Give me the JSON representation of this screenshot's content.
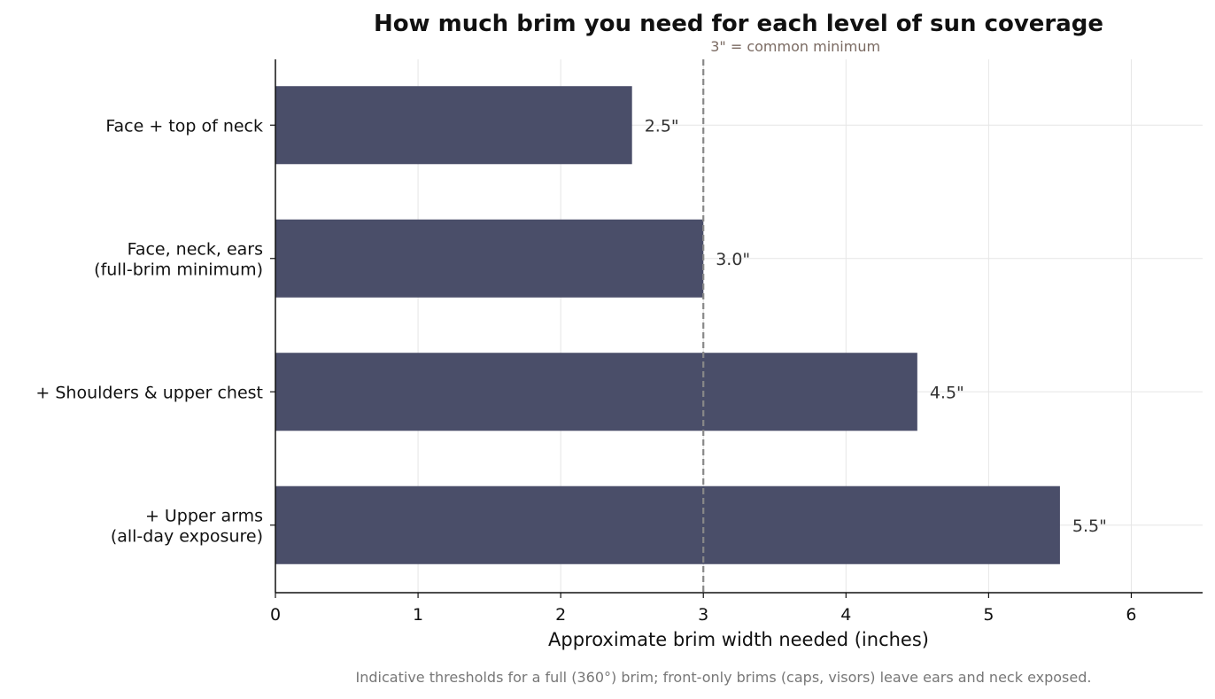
{
  "chart_data": {
    "type": "bar",
    "orientation": "horizontal",
    "title": "How much brim you need for each level of sun coverage",
    "xlabel": "Approximate brim width needed (inches)",
    "categories": [
      [
        "Face + top of neck"
      ],
      [
        "Face, neck, ears",
        "(full-brim minimum)"
      ],
      [
        "+ Shoulders & upper chest"
      ],
      [
        "+ Upper arms",
        "(all-day exposure)"
      ]
    ],
    "values": [
      2.5,
      3.0,
      4.5,
      5.5
    ],
    "data_labels": [
      "2.5\"",
      "3.0\"",
      "4.5\"",
      "5.5\""
    ],
    "xlim": [
      0,
      6.5
    ],
    "xticks": [
      0,
      1,
      2,
      3,
      4,
      5,
      6
    ],
    "reference_line": {
      "x": 3,
      "label": "3\" = common minimum"
    },
    "footnote": "Indicative thresholds for a full (360°) brim; front-only brims (caps, visors) leave ears and neck exposed.",
    "grid": true,
    "colors": {
      "bar": "#4a4e69",
      "grid": "#e6e6e6",
      "reference": "#888888"
    }
  }
}
